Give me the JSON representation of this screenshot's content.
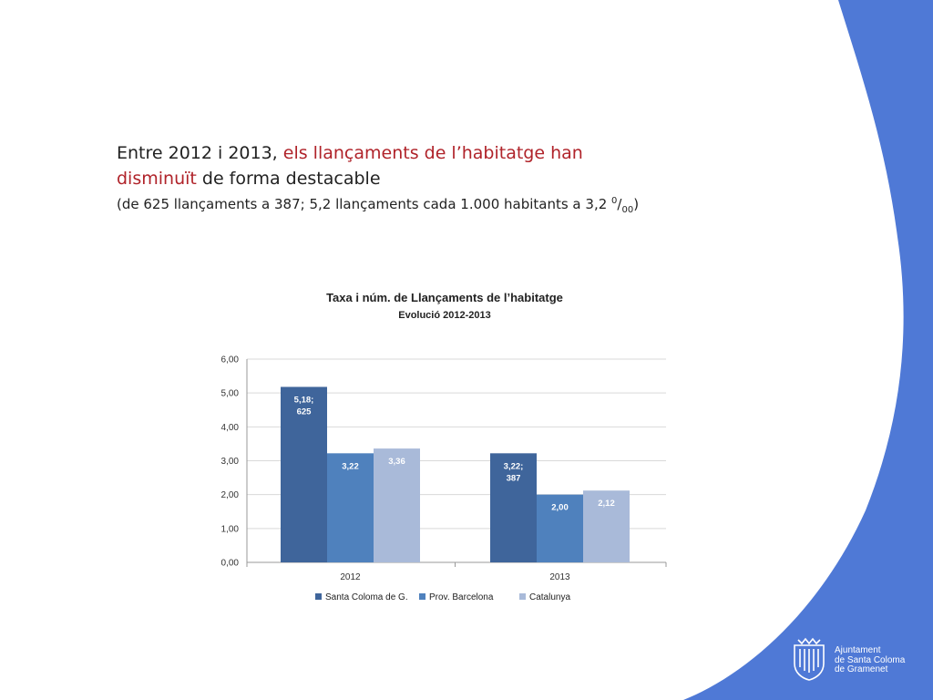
{
  "colors": {
    "accent": "#4f79d6",
    "red": "#b0232a",
    "series": [
      "#3f659b",
      "#4f81bd",
      "#a9bad9"
    ]
  },
  "headline": {
    "part1": "Entre 2012 i 2013, ",
    "red1": "els llançaments de l’habitatge han",
    "red2": "disminuït",
    "part2": " de forma destacable",
    "detail": "(de 625 llançaments a 387; 5,2 llançaments cada 1.000 habitants a 3,2 ",
    "per_sup": "0",
    "per_slash": "/",
    "per_sub": "00",
    "close": ")"
  },
  "chart_data": {
    "type": "bar",
    "title": "Taxa i núm. de Llançaments de l’habitatge",
    "subtitle": "Evolució 2012-2013",
    "categories": [
      "2012",
      "2013"
    ],
    "ylim": [
      0,
      6
    ],
    "yticks": [
      "0,00",
      "1,00",
      "2,00",
      "3,00",
      "4,00",
      "5,00",
      "6,00"
    ],
    "grid": true,
    "legend_position": "bottom",
    "series": [
      {
        "name": "Santa Coloma de G.",
        "values": [
          5.18,
          3.22
        ],
        "labels": [
          [
            "5,18;",
            "625"
          ],
          [
            "3,22;",
            "387"
          ]
        ]
      },
      {
        "name": "Prov. Barcelona",
        "values": [
          3.22,
          2.0
        ],
        "labels": [
          [
            "3,22"
          ],
          [
            "2,00"
          ]
        ]
      },
      {
        "name": "Catalunya",
        "values": [
          3.36,
          2.12
        ],
        "labels": [
          [
            "3,36"
          ],
          [
            "2,12"
          ]
        ]
      }
    ]
  },
  "logo": {
    "icon": "coat-of-arms-icon",
    "line1": "Ajuntament",
    "line2": "de Santa Coloma",
    "line3": "de Gramenet"
  }
}
